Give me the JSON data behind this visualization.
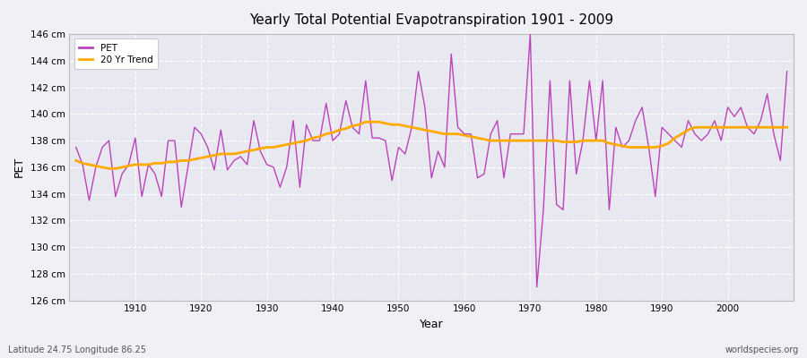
{
  "title": "Yearly Total Potential Evapotranspiration 1901 - 2009",
  "xlabel": "Year",
  "ylabel": "PET",
  "subtitle_left": "Latitude 24.75 Longitude 86.25",
  "subtitle_right": "worldspecies.org",
  "background_color": "#f0f0f5",
  "plot_bg_color": "#e8e8f0",
  "pet_color": "#bb44bb",
  "trend_color": "#ffaa00",
  "ylim": [
    126,
    146
  ],
  "ytick_labels": [
    "126 cm",
    "128 cm",
    "130 cm",
    "132 cm",
    "134 cm",
    "136 cm",
    "138 cm",
    "140 cm",
    "142 cm",
    "144 cm",
    "146 cm"
  ],
  "ytick_values": [
    126,
    128,
    130,
    132,
    134,
    136,
    138,
    140,
    142,
    144,
    146
  ],
  "years": [
    1901,
    1902,
    1903,
    1904,
    1905,
    1906,
    1907,
    1908,
    1909,
    1910,
    1911,
    1912,
    1913,
    1914,
    1915,
    1916,
    1917,
    1918,
    1919,
    1920,
    1921,
    1922,
    1923,
    1924,
    1925,
    1926,
    1927,
    1928,
    1929,
    1930,
    1931,
    1932,
    1933,
    1934,
    1935,
    1936,
    1937,
    1938,
    1939,
    1940,
    1941,
    1942,
    1943,
    1944,
    1945,
    1946,
    1947,
    1948,
    1949,
    1950,
    1951,
    1952,
    1953,
    1954,
    1955,
    1956,
    1957,
    1958,
    1959,
    1960,
    1961,
    1962,
    1963,
    1964,
    1965,
    1966,
    1967,
    1968,
    1969,
    1970,
    1971,
    1972,
    1973,
    1974,
    1975,
    1976,
    1977,
    1978,
    1979,
    1980,
    1981,
    1982,
    1983,
    1984,
    1985,
    1986,
    1987,
    1988,
    1989,
    1990,
    1991,
    1992,
    1993,
    1994,
    1995,
    1996,
    1997,
    1998,
    1999,
    2000,
    2001,
    2002,
    2003,
    2004,
    2005,
    2006,
    2007,
    2008,
    2009
  ],
  "pet_values": [
    137.5,
    136.2,
    133.5,
    136.0,
    137.5,
    138.0,
    133.8,
    135.5,
    136.2,
    138.2,
    133.8,
    136.2,
    135.5,
    133.8,
    138.0,
    138.0,
    133.0,
    136.0,
    139.0,
    138.5,
    137.5,
    135.8,
    138.8,
    135.8,
    136.5,
    136.8,
    136.2,
    139.5,
    137.2,
    136.2,
    136.0,
    134.5,
    136.0,
    139.5,
    134.5,
    139.2,
    138.0,
    138.0,
    140.8,
    138.0,
    138.5,
    141.0,
    139.0,
    138.5,
    142.5,
    138.2,
    138.2,
    138.0,
    135.0,
    137.5,
    137.0,
    139.0,
    143.2,
    140.5,
    135.2,
    137.2,
    136.0,
    144.5,
    139.0,
    138.5,
    138.5,
    135.2,
    135.5,
    138.5,
    139.5,
    135.2,
    138.5,
    138.5,
    138.5,
    146.0,
    127.0,
    132.8,
    142.5,
    133.2,
    132.8,
    142.5,
    135.5,
    138.0,
    142.5,
    138.0,
    142.5,
    132.8,
    139.0,
    137.5,
    138.0,
    139.5,
    140.5,
    137.5,
    133.8,
    139.0,
    138.5,
    138.0,
    137.5,
    139.5,
    138.5,
    138.0,
    138.5,
    139.5,
    138.0,
    140.5,
    139.8,
    140.5,
    139.0,
    138.5,
    139.5,
    141.5,
    138.5,
    136.5,
    143.2
  ],
  "trend_values": [
    136.5,
    136.3,
    136.2,
    136.1,
    136.0,
    135.9,
    135.9,
    136.0,
    136.1,
    136.2,
    136.2,
    136.2,
    136.3,
    136.3,
    136.4,
    136.4,
    136.5,
    136.5,
    136.6,
    136.7,
    136.8,
    136.9,
    137.0,
    137.0,
    137.0,
    137.1,
    137.2,
    137.3,
    137.4,
    137.5,
    137.5,
    137.6,
    137.7,
    137.8,
    137.9,
    138.0,
    138.2,
    138.3,
    138.5,
    138.6,
    138.8,
    138.9,
    139.1,
    139.2,
    139.4,
    139.4,
    139.4,
    139.3,
    139.2,
    139.2,
    139.1,
    139.0,
    138.9,
    138.8,
    138.7,
    138.6,
    138.5,
    138.5,
    138.5,
    138.4,
    138.3,
    138.2,
    138.1,
    138.0,
    138.0,
    138.0,
    138.0,
    138.0,
    138.0,
    138.0,
    138.0,
    138.0,
    138.0,
    138.0,
    137.9,
    137.9,
    137.9,
    138.0,
    138.0,
    138.0,
    138.0,
    137.8,
    137.7,
    137.6,
    137.5,
    137.5,
    137.5,
    137.5,
    137.5,
    137.6,
    137.8,
    138.2,
    138.5,
    138.8,
    139.0,
    139.0,
    139.0,
    139.0,
    139.0,
    139.0,
    139.0,
    139.0,
    139.0,
    139.0,
    139.0,
    139.0,
    139.0,
    139.0,
    139.0
  ]
}
